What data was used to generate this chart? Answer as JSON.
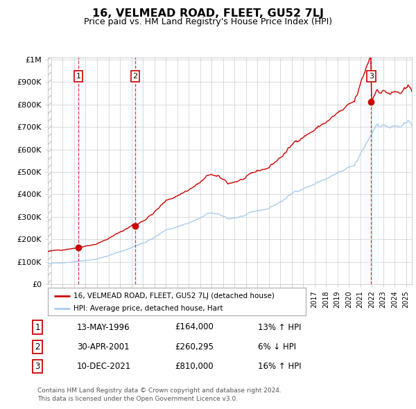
{
  "title": "16, VELMEAD ROAD, FLEET, GU52 7LJ",
  "subtitle": "Price paid vs. HM Land Registry's House Price Index (HPI)",
  "sale_prices": [
    164000,
    260295,
    810000
  ],
  "sale_labels": [
    "1",
    "2",
    "3"
  ],
  "sale_date_floats": [
    1996.37,
    2001.33,
    2021.95
  ],
  "legend_sale": "16, VELMEAD ROAD, FLEET, GU52 7LJ (detached house)",
  "legend_hpi": "HPI: Average price, detached house, Hart",
  "table_rows": [
    [
      "1",
      "13-MAY-1996",
      "£164,000",
      "13% ↑ HPI"
    ],
    [
      "2",
      "30-APR-2001",
      "£260,295",
      "6% ↓ HPI"
    ],
    [
      "3",
      "10-DEC-2021",
      "£810,000",
      "16% ↑ HPI"
    ]
  ],
  "footnote1": "Contains HM Land Registry data © Crown copyright and database right 2024.",
  "footnote2": "This data is licensed under the Open Government Licence v3.0.",
  "sale_color": "#cc0000",
  "hpi_color": "#aaccee",
  "dashed_color": "#cc0000",
  "highlight_bg": "#ddeeff",
  "ylim": [
    0,
    1000000
  ],
  "yticks": [
    0,
    100000,
    200000,
    300000,
    400000,
    500000,
    600000,
    700000,
    800000,
    900000,
    1000000
  ],
  "ylabel_fmt": [
    "£0",
    "£100K",
    "£200K",
    "£300K",
    "£400K",
    "£500K",
    "£600K",
    "£700K",
    "£800K",
    "£900K",
    "£1M"
  ],
  "xlim_left": 1993.7,
  "xlim_right": 2025.5,
  "hatch_end": 1994.0
}
